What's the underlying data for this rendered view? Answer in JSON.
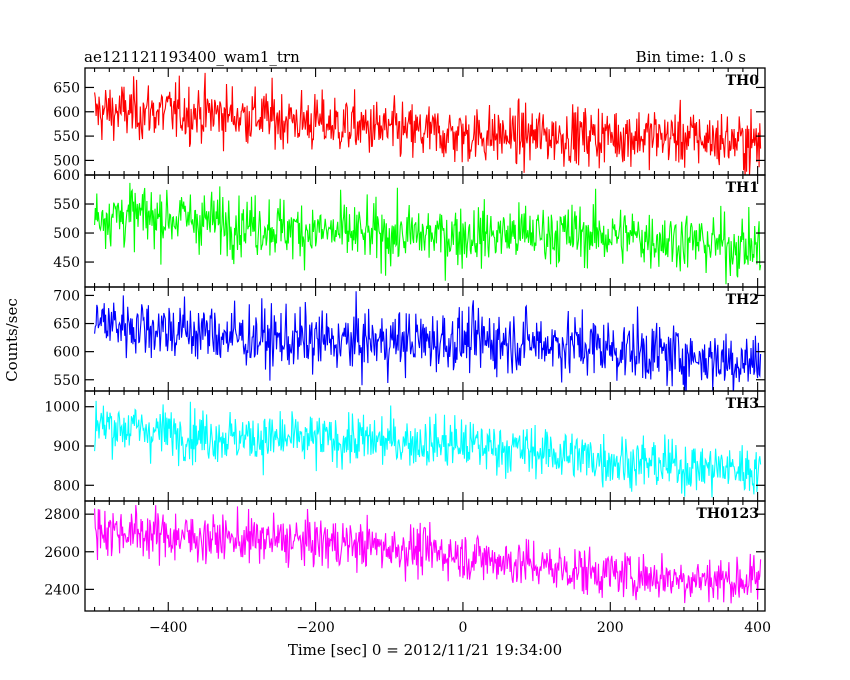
{
  "header": {
    "title": "ae121121193400_wam1_trn",
    "bin_time": "Bin time: 1.0 s"
  },
  "chart_data": {
    "type": "line",
    "xlabel": "Time [sec] 0 = 2012/11/21 19:34:00",
    "ylabel": "Counts/sec",
    "xlim": [
      -513,
      410
    ],
    "x_ticks": [
      -400,
      -200,
      0,
      200,
      400
    ],
    "x_range": [
      -500,
      404
    ],
    "bin": 1.0,
    "grid": false,
    "panels": [
      {
        "name": "TH0",
        "color": "#ff0000",
        "ylim": [
          470,
          690
        ],
        "y_ticks": [
          500,
          550,
          600,
          650
        ],
        "trend": {
          "start": 600,
          "end": 530
        },
        "noise_sd": 30,
        "n_points": 905
      },
      {
        "name": "TH1",
        "color": "#00ff00",
        "ylim": [
          407,
          600
        ],
        "y_ticks": [
          450,
          500,
          550,
          600
        ],
        "trend": {
          "start": 525,
          "end": 478
        },
        "noise_sd": 26,
        "n_points": 905
      },
      {
        "name": "TH2",
        "color": "#0000ff",
        "ylim": [
          530,
          715
        ],
        "y_ticks": [
          550,
          600,
          650,
          700
        ],
        "trend": {
          "start": 645,
          "end": 590
        },
        "noise_sd": 28,
        "n_points": 905
      },
      {
        "name": "TH3",
        "color": "#00ffff",
        "ylim": [
          760,
          1040
        ],
        "y_ticks": [
          800,
          900,
          1000
        ],
        "trend": {
          "start": 955,
          "end": 845
        },
        "noise_sd": 33,
        "n_points": 905
      },
      {
        "name": "TH0123",
        "color": "#ff00ff",
        "ylim": [
          2285,
          2870
        ],
        "y_ticks": [
          2400,
          2600,
          2800
        ],
        "trend": {
          "start": 2740,
          "end": 2435
        },
        "noise_sd": 65,
        "n_points": 905
      }
    ]
  }
}
